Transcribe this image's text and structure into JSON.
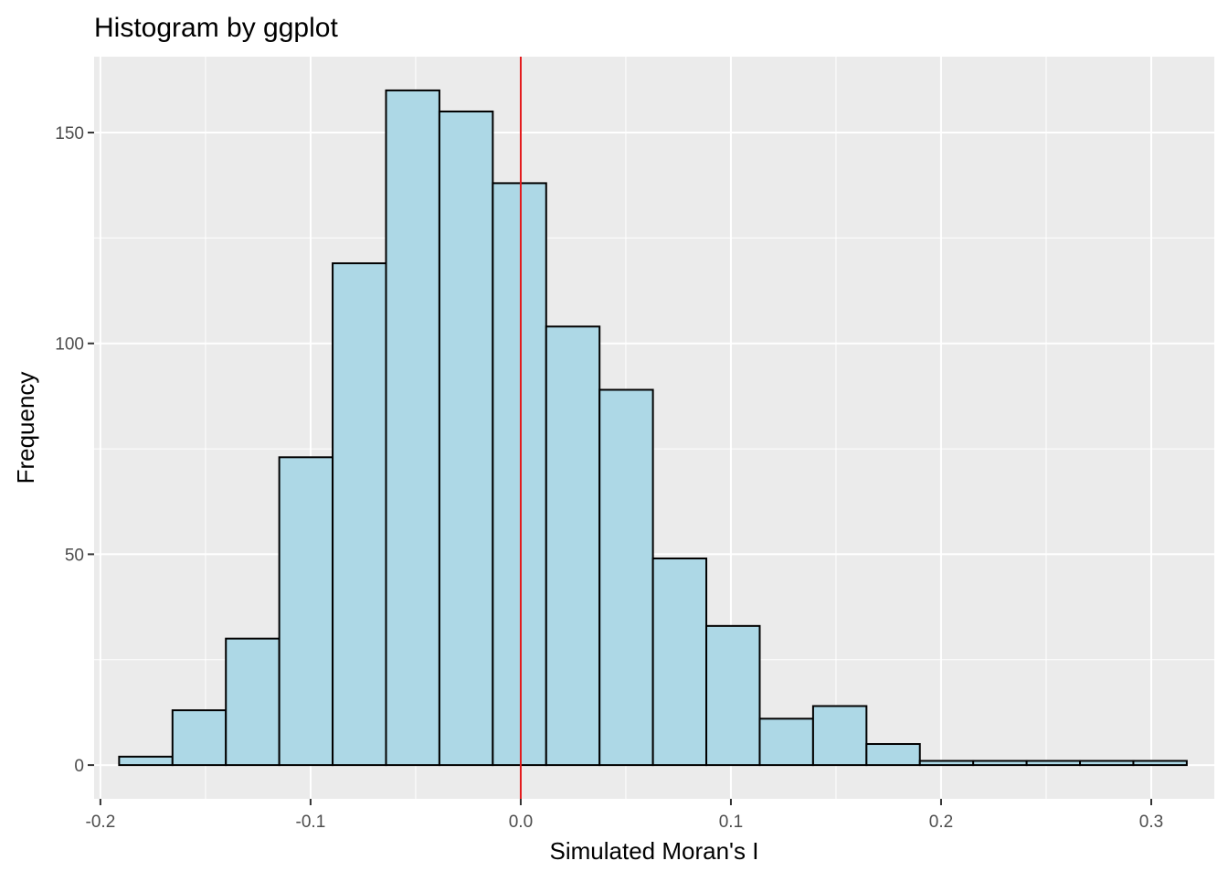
{
  "chart_data": {
    "type": "bar",
    "title": "Histogram by ggplot",
    "xlabel": "Simulated Moran's I",
    "ylabel": "Frequency",
    "xlim": [
      -0.203,
      0.33
    ],
    "ylim": [
      -8,
      168
    ],
    "x_ticks": [
      -0.2,
      -0.1,
      0.0,
      0.1,
      0.2,
      0.3
    ],
    "x_tick_labels": [
      "-0.2",
      "-0.1",
      "0.0",
      "0.1",
      "0.2",
      "0.3"
    ],
    "y_ticks": [
      0,
      50,
      100,
      150
    ],
    "y_tick_labels": [
      "0",
      "50",
      "100",
      "150"
    ],
    "bin_width": 0.0254,
    "bin_start": -0.1911,
    "values": [
      2,
      13,
      30,
      73,
      119,
      160,
      155,
      138,
      104,
      89,
      49,
      33,
      11,
      14,
      5,
      1,
      1,
      1,
      1,
      1
    ],
    "vline": {
      "x": 0.0,
      "color": "#e31a1c"
    },
    "bar_fill": "#add8e6",
    "bar_outline": "#000000",
    "panel_background": "#ebebeb",
    "grid_color": "#ffffff",
    "grid": true
  }
}
